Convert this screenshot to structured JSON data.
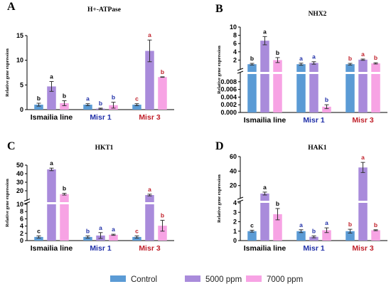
{
  "colors": {
    "control": "#5B9BD5",
    "ppm5000": "#A98BDB",
    "ppm7000": "#F7A3E4",
    "cat_black": "#000000",
    "cat_blue": "#1F2FA8",
    "cat_red": "#C0202A",
    "errorbar": "#333333"
  },
  "legend": {
    "position": "bottom-center",
    "items": [
      {
        "label": "Control",
        "color_key": "control"
      },
      {
        "label": "5000 ppm",
        "color_key": "ppm5000"
      },
      {
        "label": "7000 ppm",
        "color_key": "ppm7000"
      }
    ]
  },
  "chart_data": [
    {
      "type": "bar",
      "panel_letter": "A",
      "title": "H+-ATPase",
      "ylabel": "Relative gene expression",
      "categories": [
        "Ismailia line",
        "Misr 1",
        "Misr 3"
      ],
      "category_colors": [
        "cat_black",
        "cat_blue",
        "cat_red"
      ],
      "axis": {
        "broken": false,
        "ylim": [
          0,
          15
        ],
        "ticks": [
          "0",
          "5",
          "10",
          "15"
        ]
      },
      "series": [
        {
          "name": "Control",
          "values": [
            1.0,
            1.0,
            1.0
          ],
          "errors": [
            0.3,
            0.2,
            0.2
          ],
          "letters": [
            "b",
            "a",
            "c"
          ]
        },
        {
          "name": "5000 ppm",
          "values": [
            4.7,
            0.2,
            11.9
          ],
          "errors": [
            1.0,
            0.1,
            2.2
          ],
          "letters": [
            "a",
            "b",
            "a"
          ]
        },
        {
          "name": "7000 ppm",
          "values": [
            1.3,
            0.9,
            6.6
          ],
          "errors": [
            0.5,
            0.6,
            0.05
          ],
          "letters": [
            "b",
            "b",
            "b"
          ]
        }
      ]
    },
    {
      "type": "bar",
      "panel_letter": "B",
      "title": "NHX2",
      "ylabel": "Relative gene expression",
      "categories": [
        "Ismailia line",
        "Misr 1",
        "Misr 3"
      ],
      "category_colors": [
        "cat_black",
        "cat_blue",
        "cat_red"
      ],
      "axis": {
        "broken": true,
        "lower_ylim": [
          0,
          0.01
        ],
        "lower_ticks": [
          "0.000",
          "0.002",
          "0.004",
          "0.006",
          "0.008"
        ],
        "upper_ylim": [
          0,
          10
        ],
        "upper_ticks": [
          "2",
          "4",
          "6",
          "8",
          "10"
        ]
      },
      "series": [
        {
          "name": "Control",
          "values": [
            1.0,
            1.0,
            1.0
          ],
          "errors": [
            0.2,
            0.25,
            0.2
          ],
          "letters": [
            "b",
            "a",
            "b"
          ]
        },
        {
          "name": "5000 ppm",
          "values": [
            6.7,
            1.3,
            2.1
          ],
          "errors": [
            1.0,
            0.3,
            0.15
          ],
          "letters": [
            "a",
            "a",
            "a"
          ]
        },
        {
          "name": "7000 ppm",
          "values": [
            2.0,
            0.0015,
            1.2
          ],
          "errors": [
            0.6,
            0.0005,
            0.15
          ],
          "letters": [
            "b",
            "b",
            "b"
          ]
        }
      ]
    },
    {
      "type": "bar",
      "panel_letter": "C",
      "title": "HKT1",
      "ylabel": "Relative gene expression",
      "categories": [
        "Ismailia line",
        "Misr 1",
        "Misr 3"
      ],
      "category_colors": [
        "cat_black",
        "cat_blue",
        "cat_red"
      ],
      "axis": {
        "broken": true,
        "lower_ylim": [
          0,
          10
        ],
        "lower_ticks": [
          "0",
          "2",
          "4",
          "6",
          "8",
          "10"
        ],
        "upper_ylim": [
          10,
          50
        ],
        "upper_ticks": [
          "20",
          "30",
          "40",
          "50"
        ]
      },
      "series": [
        {
          "name": "Control",
          "values": [
            1.0,
            1.0,
            1.0
          ],
          "errors": [
            0.3,
            0.3,
            0.3
          ],
          "letters": [
            "c",
            "b",
            "c"
          ]
        },
        {
          "name": "5000 ppm",
          "values": [
            45.0,
            1.4,
            15.0
          ],
          "errors": [
            1.5,
            0.8,
            1.0
          ],
          "letters": [
            "a",
            "a",
            "a"
          ]
        },
        {
          "name": "7000 ppm",
          "values": [
            16.0,
            1.6,
            4.1
          ],
          "errors": [
            1.0,
            0.15,
            1.5
          ],
          "letters": [
            "b",
            "a",
            "b"
          ]
        }
      ]
    },
    {
      "type": "bar",
      "panel_letter": "D",
      "title": "HAK1",
      "ylabel": "Relative gene expression",
      "categories": [
        "Ismailia line",
        "Misr 1",
        "Misr 3"
      ],
      "category_colors": [
        "cat_black",
        "cat_blue",
        "cat_red"
      ],
      "axis": {
        "broken": true,
        "lower_ylim": [
          0,
          4
        ],
        "lower_ticks": [
          "0",
          "1",
          "2",
          "3",
          "4"
        ],
        "upper_ylim": [
          4,
          60
        ],
        "upper_ticks": [
          "20",
          "40",
          "60"
        ]
      },
      "series": [
        {
          "name": "Control",
          "values": [
            1.0,
            1.0,
            1.0
          ],
          "errors": [
            0.1,
            0.15,
            0.2
          ],
          "letters": [
            "c",
            "a",
            "b"
          ]
        },
        {
          "name": "5000 ppm",
          "values": [
            9.0,
            0.4,
            45.0
          ],
          "errors": [
            2.0,
            0.1,
            7.0
          ],
          "letters": [
            "a",
            "b",
            "a"
          ]
        },
        {
          "name": "7000 ppm",
          "values": [
            2.8,
            1.1,
            1.1
          ],
          "errors": [
            0.6,
            0.25,
            0.05
          ],
          "letters": [
            "b",
            "a",
            "b"
          ]
        }
      ]
    }
  ]
}
